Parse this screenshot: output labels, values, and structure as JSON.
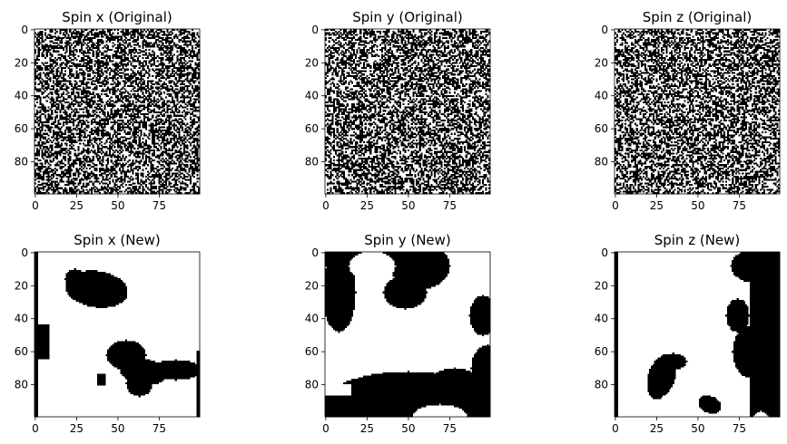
{
  "chart_data": [
    {
      "type": "heatmap",
      "title": "Spin x (Original)",
      "pattern": "random",
      "seed": 11,
      "xticks": [
        0,
        25,
        50,
        75
      ],
      "yticks": [
        0,
        20,
        40,
        60,
        80
      ],
      "xlim": [
        0,
        99
      ],
      "ylim": [
        99,
        0
      ],
      "colormap": {
        "-1": "#000000",
        "1": "#ffffff"
      }
    },
    {
      "type": "heatmap",
      "title": "Spin y (Original)",
      "pattern": "random",
      "seed": 23,
      "xticks": [
        0,
        25,
        50,
        75
      ],
      "yticks": [
        0,
        20,
        40,
        60,
        80
      ],
      "xlim": [
        0,
        99
      ],
      "ylim": [
        99,
        0
      ],
      "colormap": {
        "-1": "#000000",
        "1": "#ffffff"
      }
    },
    {
      "type": "heatmap",
      "title": "Spin z (Original)",
      "pattern": "random",
      "seed": 37,
      "xticks": [
        0,
        25,
        50,
        75
      ],
      "yticks": [
        0,
        20,
        40,
        60,
        80
      ],
      "xlim": [
        0,
        99
      ],
      "ylim": [
        99,
        0
      ],
      "colormap": {
        "-1": "#000000",
        "1": "#ffffff"
      }
    },
    {
      "type": "heatmap",
      "title": "Spin x (New)",
      "pattern": "domains",
      "background": 1,
      "domains": [
        {
          "value": -1,
          "shape": "ellipse",
          "cx": 37,
          "cy": 22,
          "rx": 19,
          "ry": 11,
          "rotate": 8
        },
        {
          "value": -1,
          "shape": "ellipse",
          "cx": 24,
          "cy": 16,
          "rx": 6,
          "ry": 6,
          "rotate": 0
        },
        {
          "value": -1,
          "shape": "rect",
          "x0": 0,
          "x1": 8,
          "y0": 44,
          "y1": 64
        },
        {
          "value": -1,
          "shape": "ellipse",
          "cx": 55,
          "cy": 62,
          "rx": 12,
          "ry": 9,
          "rotate": 0
        },
        {
          "value": -1,
          "shape": "ellipse",
          "cx": 65,
          "cy": 72,
          "rx": 14,
          "ry": 8,
          "rotate": 10
        },
        {
          "value": -1,
          "shape": "ellipse",
          "cx": 85,
          "cy": 71,
          "rx": 16,
          "ry": 6,
          "rotate": 0
        },
        {
          "value": -1,
          "shape": "ellipse",
          "cx": 63,
          "cy": 79,
          "rx": 8,
          "ry": 8,
          "rotate": 0
        },
        {
          "value": -1,
          "shape": "rect",
          "x0": 38,
          "x1": 42,
          "y0": 74,
          "y1": 80
        },
        {
          "value": -1,
          "shape": "rect",
          "x0": 0,
          "x1": 1,
          "y0": 0,
          "y1": 99
        },
        {
          "value": -1,
          "shape": "rect",
          "x0": 98,
          "x1": 99,
          "y0": 60,
          "y1": 99
        }
      ],
      "xticks": [
        0,
        25,
        50,
        75
      ],
      "yticks": [
        0,
        20,
        40,
        60,
        80
      ],
      "xlim": [
        0,
        99
      ],
      "ylim": [
        99,
        0
      ],
      "colormap": {
        "-1": "#000000",
        "1": "#ffffff"
      }
    },
    {
      "type": "heatmap",
      "title": "Spin y (New)",
      "pattern": "domains",
      "background": 1,
      "domains": [
        {
          "value": -1,
          "shape": "rect",
          "x0": 0,
          "x1": 56,
          "y0": 0,
          "y1": 8
        },
        {
          "value": -1,
          "shape": "ellipse",
          "cx": 8,
          "cy": 24,
          "rx": 10,
          "ry": 24,
          "rotate": 0
        },
        {
          "value": -1,
          "shape": "ellipse",
          "cx": 57,
          "cy": 8,
          "rx": 18,
          "ry": 14,
          "rotate": 0
        },
        {
          "value": -1,
          "shape": "ellipse",
          "cx": 48,
          "cy": 24,
          "rx": 13,
          "ry": 10,
          "rotate": 0
        },
        {
          "value": -1,
          "shape": "ellipse",
          "cx": 95,
          "cy": 38,
          "rx": 8,
          "ry": 12,
          "rotate": 0
        },
        {
          "value": -1,
          "shape": "ellipse",
          "cx": 50,
          "cy": 100,
          "rx": 60,
          "ry": 28,
          "rotate": 0
        },
        {
          "value": -1,
          "shape": "ellipse",
          "cx": 78,
          "cy": 84,
          "rx": 18,
          "ry": 14,
          "rotate": 0
        },
        {
          "value": -1,
          "shape": "ellipse",
          "cx": 98,
          "cy": 70,
          "rx": 10,
          "ry": 14,
          "rotate": 0
        },
        {
          "value": 1,
          "shape": "ellipse",
          "cx": 28,
          "cy": 8,
          "rx": 14,
          "ry": 9,
          "rotate": 0
        },
        {
          "value": 1,
          "shape": "ellipse",
          "cx": 69,
          "cy": 100,
          "rx": 17,
          "ry": 8,
          "rotate": 0
        },
        {
          "value": 1,
          "shape": "rect",
          "x0": 0,
          "x1": 15,
          "y0": 80,
          "y1": 86
        },
        {
          "value": 1,
          "shape": "rect",
          "x0": 0,
          "x1": 2,
          "y0": 58,
          "y1": 80
        }
      ],
      "xticks": [
        0,
        25,
        50,
        75
      ],
      "yticks": [
        0,
        20,
        40,
        60,
        80
      ],
      "xlim": [
        0,
        99
      ],
      "ylim": [
        99,
        0
      ],
      "colormap": {
        "-1": "#000000",
        "1": "#ffffff"
      }
    },
    {
      "type": "heatmap",
      "title": "Spin z (New)",
      "pattern": "domains",
      "background": 1,
      "domains": [
        {
          "value": -1,
          "shape": "rect",
          "x0": 82,
          "x1": 99,
          "y0": 0,
          "y1": 99
        },
        {
          "value": -1,
          "shape": "ellipse",
          "cx": 84,
          "cy": 8,
          "rx": 14,
          "ry": 10,
          "rotate": 0
        },
        {
          "value": -1,
          "shape": "ellipse",
          "cx": 74,
          "cy": 38,
          "rx": 7,
          "ry": 10,
          "rotate": 0
        },
        {
          "value": -1,
          "shape": "ellipse",
          "cx": 82,
          "cy": 60,
          "rx": 11,
          "ry": 16,
          "rotate": 0
        },
        {
          "value": -1,
          "shape": "ellipse",
          "cx": 95,
          "cy": 92,
          "rx": 8,
          "ry": 8,
          "rotate": 0
        },
        {
          "value": -1,
          "shape": "ellipse",
          "cx": 28,
          "cy": 75,
          "rx": 8,
          "ry": 14,
          "rotate": 20
        },
        {
          "value": -1,
          "shape": "ellipse",
          "cx": 35,
          "cy": 66,
          "rx": 8,
          "ry": 5,
          "rotate": 0
        },
        {
          "value": -1,
          "shape": "ellipse",
          "cx": 57,
          "cy": 92,
          "rx": 7,
          "ry": 5,
          "rotate": 25
        },
        {
          "value": -1,
          "shape": "rect",
          "x0": 0,
          "x1": 1,
          "y0": 0,
          "y1": 99
        },
        {
          "value": 1,
          "shape": "ellipse",
          "cx": 88,
          "cy": 99,
          "rx": 4,
          "ry": 3,
          "rotate": 0
        }
      ],
      "xticks": [
        0,
        25,
        50,
        75
      ],
      "yticks": [
        0,
        20,
        40,
        60,
        80
      ],
      "xlim": [
        0,
        99
      ],
      "ylim": [
        99,
        0
      ],
      "colormap": {
        "-1": "#000000",
        "1": "#ffffff"
      }
    }
  ]
}
